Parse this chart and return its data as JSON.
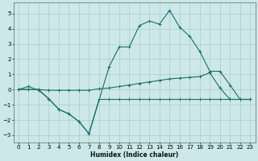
{
  "xlabel": "Humidex (Indice chaleur)",
  "bg_color": "#cce8e8",
  "grid_color": "#aacccc",
  "line_color": "#1a6e6a",
  "xlim": [
    -0.5,
    23.5
  ],
  "ylim": [
    -3.5,
    5.7
  ],
  "xticks": [
    0,
    1,
    2,
    3,
    4,
    5,
    6,
    7,
    8,
    9,
    10,
    11,
    12,
    13,
    14,
    15,
    16,
    17,
    18,
    19,
    20,
    21,
    22,
    23
  ],
  "yticks": [
    -3,
    -2,
    -1,
    0,
    1,
    2,
    3,
    4,
    5
  ],
  "series1_x": [
    0,
    1,
    2,
    3,
    4,
    5,
    6,
    7,
    8,
    9,
    10,
    11,
    12,
    13,
    14,
    15,
    16,
    17,
    18,
    19,
    20,
    21,
    22,
    23
  ],
  "series1_y": [
    0.0,
    0.2,
    -0.05,
    -0.6,
    -1.3,
    -1.6,
    -2.1,
    -2.9,
    -0.65,
    -0.65,
    -0.65,
    -0.65,
    -0.65,
    -0.65,
    -0.65,
    -0.65,
    -0.65,
    -0.65,
    -0.65,
    -0.65,
    -0.65,
    -0.65,
    -0.65,
    -0.65
  ],
  "series2_x": [
    0,
    1,
    2,
    3,
    4,
    5,
    6,
    7,
    8,
    9,
    10,
    11,
    12,
    13,
    14,
    15,
    16,
    17,
    18,
    19,
    20,
    21,
    22,
    23
  ],
  "series2_y": [
    0.0,
    0.0,
    0.0,
    -0.05,
    -0.05,
    -0.05,
    -0.05,
    -0.05,
    0.05,
    0.1,
    0.2,
    0.3,
    0.4,
    0.5,
    0.6,
    0.7,
    0.75,
    0.8,
    0.85,
    1.1,
    0.1,
    -0.65,
    -0.65,
    -0.65
  ],
  "series3_x": [
    0,
    2,
    3,
    4,
    5,
    6,
    7,
    9,
    10,
    11,
    12,
    13,
    14,
    15,
    16,
    17,
    18,
    19,
    20,
    21,
    22,
    23
  ],
  "series3_y": [
    0.0,
    0.0,
    -0.6,
    -1.3,
    -1.6,
    -2.1,
    -2.9,
    1.5,
    2.8,
    2.8,
    4.2,
    4.5,
    4.3,
    5.2,
    4.1,
    3.5,
    2.5,
    1.2,
    1.2,
    0.3,
    -0.65,
    -0.65
  ]
}
